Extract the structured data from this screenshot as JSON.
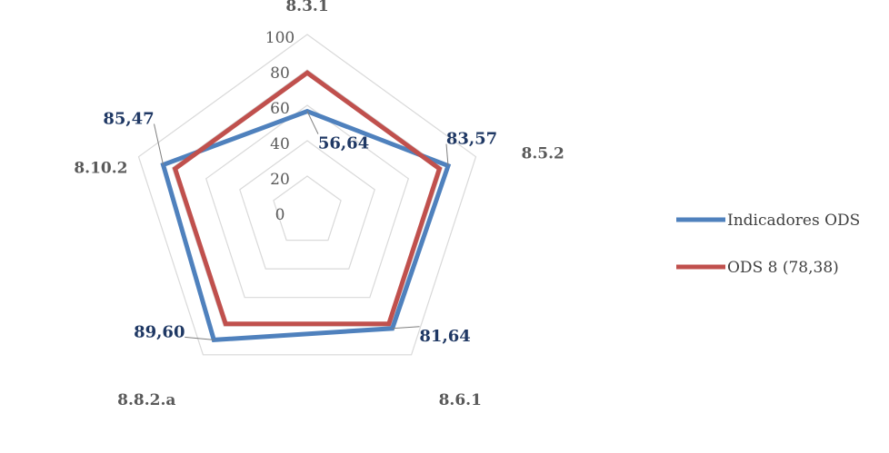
{
  "chart_data": {
    "type": "radar",
    "categories": [
      "8.3.1",
      "8.5.2",
      "8.6.1",
      "8.8.2.a",
      "8.10.2"
    ],
    "rlim": [
      0,
      100
    ],
    "ticks": [
      "0",
      "20",
      "40",
      "60",
      "80",
      "100"
    ],
    "tick_values": [
      0,
      20,
      40,
      60,
      80,
      100
    ],
    "grid": true,
    "legend_position": "right",
    "series": [
      {
        "name": "Indicadores ODS",
        "color": "#4f81bd",
        "values": [
          56.64,
          83.57,
          81.64,
          89.6,
          85.47
        ],
        "data_labels": [
          "56,64",
          "83,57",
          "81,64",
          "89,60",
          "85,47"
        ]
      },
      {
        "name": "ODS 8 (78,38)",
        "color": "#c0504d",
        "values": [
          78.38,
          78.38,
          78.38,
          78.38,
          78.38
        ]
      }
    ]
  }
}
